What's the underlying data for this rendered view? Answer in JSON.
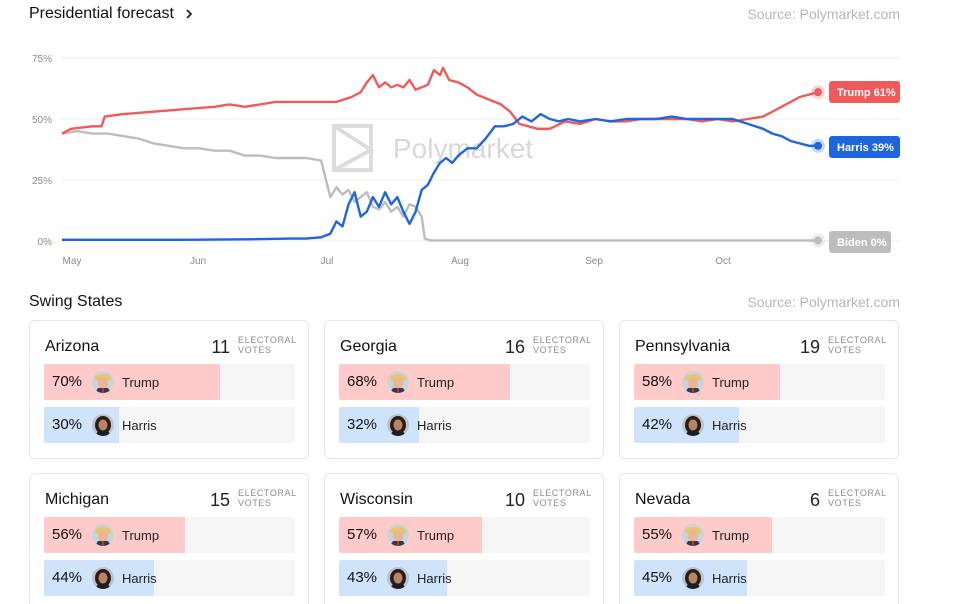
{
  "header": {
    "title": "Presidential forecast",
    "source": "Source: Polymarket.com"
  },
  "swing_header": {
    "title": "Swing States",
    "source": "Source: Polymarket.com"
  },
  "watermark": "Polymarket",
  "chart_data": {
    "type": "line",
    "y_ticks": [
      "75%",
      "50%",
      "25%",
      "0%"
    ],
    "x_ticks": [
      "May",
      "Jun",
      "Jul",
      "Aug",
      "Sep",
      "Oct"
    ],
    "ylim": [
      0,
      80
    ],
    "xlim": [
      "Apr 30",
      "Oct 20"
    ],
    "grid": true,
    "series": [
      {
        "name": "Trump",
        "color": "#f05a5a",
        "end_label": "Trump 61%",
        "points": [
          [
            0,
            44
          ],
          [
            3,
            46
          ],
          [
            10,
            47
          ],
          [
            13,
            47
          ],
          [
            14,
            51
          ],
          [
            20,
            52
          ],
          [
            30,
            53
          ],
          [
            40,
            54
          ],
          [
            50,
            55
          ],
          [
            55,
            56
          ],
          [
            60,
            55
          ],
          [
            65,
            56
          ],
          [
            70,
            57
          ],
          [
            80,
            57
          ],
          [
            90,
            57
          ],
          [
            95,
            59
          ],
          [
            98,
            61
          ],
          [
            100,
            65
          ],
          [
            102,
            68
          ],
          [
            104,
            63
          ],
          [
            106,
            65
          ],
          [
            108,
            63
          ],
          [
            110,
            64
          ],
          [
            112,
            63
          ],
          [
            114,
            66
          ],
          [
            116,
            62
          ],
          [
            118,
            63
          ],
          [
            120,
            64
          ],
          [
            122,
            70
          ],
          [
            124,
            68
          ],
          [
            125,
            71
          ],
          [
            127,
            66
          ],
          [
            130,
            65
          ],
          [
            133,
            63
          ],
          [
            136,
            60
          ],
          [
            140,
            58
          ],
          [
            144,
            56
          ],
          [
            147,
            53
          ],
          [
            150,
            48
          ],
          [
            153,
            47
          ],
          [
            156,
            46
          ],
          [
            160,
            46
          ],
          [
            165,
            49
          ],
          [
            170,
            48
          ],
          [
            175,
            50
          ],
          [
            180,
            49
          ],
          [
            185,
            49
          ],
          [
            190,
            50
          ],
          [
            195,
            50
          ],
          [
            200,
            50
          ],
          [
            205,
            50
          ],
          [
            210,
            49
          ],
          [
            215,
            50
          ],
          [
            220,
            49
          ],
          [
            225,
            50
          ],
          [
            230,
            51
          ],
          [
            233,
            53
          ],
          [
            236,
            55
          ],
          [
            239,
            57
          ],
          [
            242,
            59
          ],
          [
            245,
            60
          ],
          [
            248,
            61
          ]
        ]
      },
      {
        "name": "Harris",
        "color": "#1f66dd",
        "end_label": "Harris 39%",
        "points": [
          [
            0,
            0.5
          ],
          [
            20,
            0.5
          ],
          [
            40,
            0.5
          ],
          [
            60,
            0.7
          ],
          [
            75,
            1
          ],
          [
            80,
            1
          ],
          [
            85,
            1.5
          ],
          [
            88,
            3
          ],
          [
            90,
            8
          ],
          [
            92,
            6
          ],
          [
            94,
            15
          ],
          [
            96,
            20
          ],
          [
            98,
            10
          ],
          [
            100,
            12
          ],
          [
            102,
            18
          ],
          [
            104,
            14
          ],
          [
            106,
            20
          ],
          [
            108,
            15
          ],
          [
            110,
            18
          ],
          [
            112,
            12
          ],
          [
            114,
            7
          ],
          [
            116,
            12
          ],
          [
            118,
            21
          ],
          [
            120,
            23
          ],
          [
            122,
            28
          ],
          [
            124,
            32
          ],
          [
            126,
            34
          ],
          [
            128,
            32
          ],
          [
            130,
            35
          ],
          [
            133,
            38
          ],
          [
            136,
            38
          ],
          [
            139,
            42
          ],
          [
            142,
            47
          ],
          [
            145,
            47
          ],
          [
            148,
            48
          ],
          [
            151,
            51
          ],
          [
            154,
            49
          ],
          [
            157,
            52
          ],
          [
            160,
            50
          ],
          [
            163,
            49
          ],
          [
            166,
            50
          ],
          [
            170,
            49
          ],
          [
            175,
            50
          ],
          [
            180,
            49
          ],
          [
            185,
            50
          ],
          [
            190,
            50
          ],
          [
            195,
            50
          ],
          [
            200,
            51
          ],
          [
            205,
            50
          ],
          [
            210,
            50
          ],
          [
            215,
            50
          ],
          [
            220,
            50
          ],
          [
            225,
            48
          ],
          [
            230,
            46
          ],
          [
            233,
            44
          ],
          [
            236,
            43
          ],
          [
            239,
            41
          ],
          [
            242,
            40
          ],
          [
            245,
            39
          ],
          [
            248,
            39
          ]
        ]
      },
      {
        "name": "Biden",
        "color": "#bdbdbd",
        "end_label": "Biden 0%",
        "points": [
          [
            0,
            44
          ],
          [
            5,
            45
          ],
          [
            10,
            44
          ],
          [
            15,
            44
          ],
          [
            20,
            43
          ],
          [
            25,
            42
          ],
          [
            30,
            40
          ],
          [
            35,
            39
          ],
          [
            40,
            38
          ],
          [
            45,
            38
          ],
          [
            50,
            37
          ],
          [
            55,
            37
          ],
          [
            60,
            35
          ],
          [
            65,
            35
          ],
          [
            70,
            34
          ],
          [
            75,
            34
          ],
          [
            80,
            34
          ],
          [
            85,
            33
          ],
          [
            86,
            28
          ],
          [
            88,
            18
          ],
          [
            90,
            22
          ],
          [
            92,
            19
          ],
          [
            94,
            21
          ],
          [
            96,
            16
          ],
          [
            98,
            18
          ],
          [
            100,
            20
          ],
          [
            102,
            14
          ],
          [
            104,
            13
          ],
          [
            106,
            16
          ],
          [
            108,
            12
          ],
          [
            110,
            14
          ],
          [
            112,
            10
          ],
          [
            114,
            15
          ],
          [
            116,
            14
          ],
          [
            118,
            10
          ],
          [
            119,
            1
          ],
          [
            121,
            0.2
          ],
          [
            140,
            0.2
          ],
          [
            160,
            0.2
          ],
          [
            200,
            0.2
          ],
          [
            248,
            0.2
          ]
        ]
      }
    ]
  },
  "states": [
    {
      "name": "Arizona",
      "ev": "11",
      "ev_label": "ELECTORAL VOTES",
      "trump_pct": "70%",
      "harris_pct": "30%",
      "trump_share": 0.7,
      "harris_share": 0.3
    },
    {
      "name": "Georgia",
      "ev": "16",
      "ev_label": "ELECTORAL VOTES",
      "trump_pct": "68%",
      "harris_pct": "32%",
      "trump_share": 0.68,
      "harris_share": 0.32
    },
    {
      "name": "Pennsylvania",
      "ev": "19",
      "ev_label": "ELECTORAL VOTES",
      "trump_pct": "58%",
      "harris_pct": "42%",
      "trump_share": 0.58,
      "harris_share": 0.42
    },
    {
      "name": "Michigan",
      "ev": "15",
      "ev_label": "ELECTORAL VOTES",
      "trump_pct": "56%",
      "harris_pct": "44%",
      "trump_share": 0.56,
      "harris_share": 0.44
    },
    {
      "name": "Wisconsin",
      "ev": "10",
      "ev_label": "ELECTORAL VOTES",
      "trump_pct": "57%",
      "harris_pct": "43%",
      "trump_share": 0.57,
      "harris_share": 0.43
    },
    {
      "name": "Nevada",
      "ev": "6",
      "ev_label": "ELECTORAL VOTES",
      "trump_pct": "55%",
      "harris_pct": "45%",
      "trump_share": 0.55,
      "harris_share": 0.45
    }
  ],
  "candidates": {
    "trump": "Trump",
    "harris": "Harris"
  }
}
